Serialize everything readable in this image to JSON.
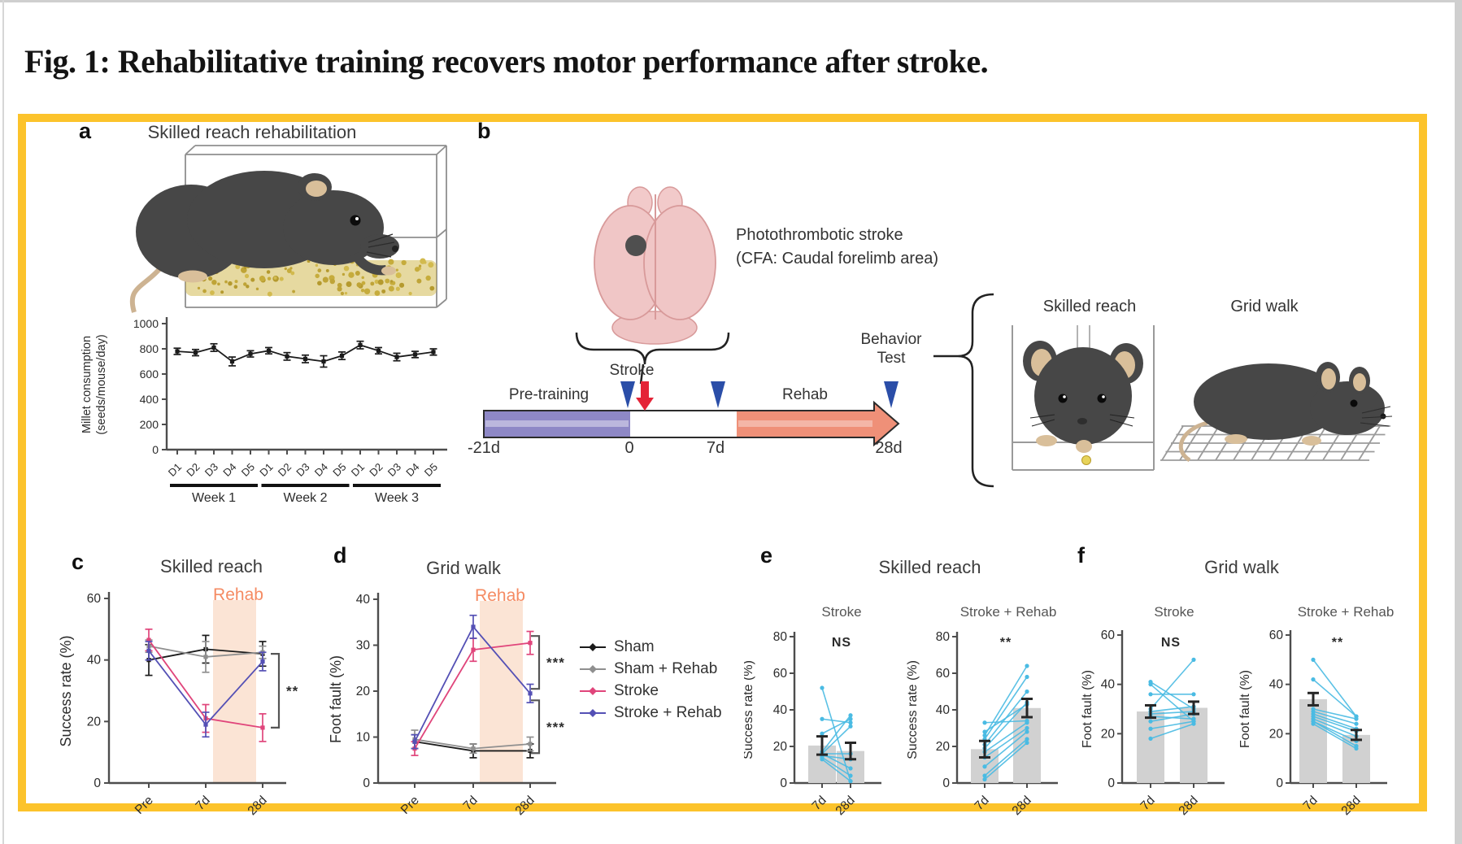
{
  "page": {
    "title": "Fig. 1: Rehabilitative training recovers motor performance after stroke."
  },
  "colors": {
    "figure_border": "#FCC32B",
    "sham": "#1b1b1b",
    "sham_rehab": "#8f8f8f",
    "stroke": "#E0457B",
    "stroke_rehab": "#5450B5",
    "individual_line": "#4ABBE3",
    "bar_fill": "#D1D1D1",
    "rehab_shade": "#FBE4D5",
    "rehab_text": "#F58B63",
    "pretraining_bar": "#8E88C6",
    "rehab_arrow": "#EF9078",
    "timepoint_triangle": "#2B4EA8",
    "stroke_arrow": "#E42437",
    "seeds": "#C6AC3C"
  },
  "panels": {
    "a": {
      "label": "a",
      "title": "Skilled reach rehabilitation"
    },
    "b": {
      "label": "b",
      "caption": [
        "Photothrombotic stroke",
        "(CFA: Caudal forelimb area)"
      ],
      "timeline": {
        "pretraining": "Pre-training",
        "stroke": "Stroke",
        "rehab": "Rehab",
        "behavior": [
          "Behavior",
          "Test"
        ],
        "ticks": [
          "-21d",
          "0",
          "7d",
          "28d"
        ]
      },
      "tests": {
        "skilled_reach": "Skilled reach",
        "grid_walk": "Grid walk"
      }
    },
    "c": {
      "label": "c"
    },
    "d": {
      "label": "d"
    },
    "e": {
      "label": "e"
    },
    "f": {
      "label": "f"
    }
  },
  "legend": {
    "items": [
      {
        "label": "Sham",
        "color": "#1b1b1b"
      },
      {
        "label": "Sham + Rehab",
        "color": "#8f8f8f"
      },
      {
        "label": "Stroke",
        "color": "#E0457B"
      },
      {
        "label": "Stroke + Rehab",
        "color": "#5450B5"
      }
    ]
  },
  "chart_data": [
    {
      "id": "millet",
      "type": "line",
      "ylabel": [
        "Millet consumption",
        "(seeds/mouse/day)"
      ],
      "ylim": [
        0,
        1000
      ],
      "yticks": [
        0,
        200,
        400,
        600,
        800,
        1000
      ],
      "categories": [
        "D1",
        "D2",
        "D3",
        "D4",
        "D5",
        "D1",
        "D2",
        "D3",
        "D4",
        "D5",
        "D1",
        "D2",
        "D3",
        "D4",
        "D5"
      ],
      "groups": [
        {
          "label": "Week 1",
          "from": 0,
          "to": 4
        },
        {
          "label": "Week 2",
          "from": 5,
          "to": 9
        },
        {
          "label": "Week 3",
          "from": 10,
          "to": 14
        }
      ],
      "series": [
        {
          "name": "Millet consumption",
          "color": "#1b1b1b",
          "values": [
            780,
            770,
            810,
            700,
            760,
            785,
            740,
            720,
            700,
            745,
            830,
            785,
            735,
            755,
            775
          ],
          "errors": [
            25,
            25,
            30,
            35,
            25,
            25,
            30,
            30,
            45,
            30,
            30,
            25,
            30,
            25,
            25
          ]
        }
      ]
    },
    {
      "id": "skilled_reach_line",
      "type": "line",
      "title": "Skilled reach",
      "rehab_label": "Rehab",
      "ylabel": "Success rate (%)",
      "ylim": [
        0,
        60
      ],
      "yticks": [
        0,
        20,
        40,
        60
      ],
      "categories": [
        "Pre",
        "7d",
        "28d"
      ],
      "shaded": true,
      "series": [
        {
          "name": "Sham",
          "color": "#1b1b1b",
          "values": [
            40,
            43.5,
            42
          ],
          "errors": [
            5,
            4.5,
            4
          ]
        },
        {
          "name": "Sham + Rehab",
          "color": "#8f8f8f",
          "values": [
            44.5,
            41,
            42.5
          ],
          "errors": [
            2,
            5,
            2
          ]
        },
        {
          "name": "Stroke",
          "color": "#E0457B",
          "values": [
            46.5,
            21,
            18
          ],
          "errors": [
            3.5,
            4.5,
            4.5
          ]
        },
        {
          "name": "Stroke + Rehab",
          "color": "#5450B5",
          "values": [
            43,
            19,
            39.5
          ],
          "errors": [
            3,
            4,
            3
          ]
        }
      ],
      "sig": [
        {
          "label": "**",
          "from": 42,
          "to": 18
        }
      ]
    },
    {
      "id": "grid_walk_line",
      "type": "line",
      "title": "Grid walk",
      "rehab_label": "Rehab",
      "ylabel": "Foot fault (%)",
      "ylim": [
        0,
        40
      ],
      "yticks": [
        0,
        10,
        20,
        30,
        40
      ],
      "categories": [
        "Pre",
        "7d",
        "28d"
      ],
      "shaded": true,
      "series": [
        {
          "name": "Sham",
          "color": "#1b1b1b",
          "values": [
            9,
            7,
            7
          ],
          "errors": [
            1.5,
            1.5,
            1.5
          ]
        },
        {
          "name": "Sham + Rehab",
          "color": "#8f8f8f",
          "values": [
            9.5,
            7.5,
            8.5
          ],
          "errors": [
            2,
            1,
            1.5
          ]
        },
        {
          "name": "Stroke",
          "color": "#E0457B",
          "values": [
            7.5,
            29,
            30.5
          ],
          "errors": [
            1.5,
            2.5,
            2.5
          ]
        },
        {
          "name": "Stroke + Rehab",
          "color": "#5450B5",
          "values": [
            9,
            34,
            19.5
          ],
          "errors": [
            1.5,
            2.5,
            2
          ]
        }
      ],
      "sig": [
        {
          "label": "***",
          "from": 32,
          "to": 20.5
        },
        {
          "label": "***",
          "from": 18,
          "to": 6.5
        }
      ]
    },
    {
      "id": "skilled_reach_paired",
      "type": "paired-bar",
      "panel_title": "Skilled reach",
      "subcharts": [
        {
          "title": "Stroke",
          "sig": "NS",
          "ylabel": "Success rate (%)",
          "ylim": [
            0,
            80
          ],
          "yticks": [
            0,
            20,
            40,
            60,
            80
          ],
          "categories": [
            "7d",
            "28d"
          ],
          "bar_values": [
            20.5,
            17.5
          ],
          "bar_errors": [
            5,
            4.5
          ],
          "pairs": [
            [
              52,
              1
            ],
            [
              35,
              33
            ],
            [
              27,
              35
            ],
            [
              17,
              37
            ],
            [
              16,
              31
            ],
            [
              16,
              16
            ],
            [
              15,
              13
            ],
            [
              16,
              8
            ],
            [
              14,
              4
            ],
            [
              13,
              1
            ]
          ]
        },
        {
          "title": "Stroke + Rehab",
          "sig": "**",
          "ylabel": "Success rate (%)",
          "ylim": [
            0,
            80
          ],
          "yticks": [
            0,
            20,
            40,
            60,
            80
          ],
          "categories": [
            "7d",
            "28d"
          ],
          "bar_values": [
            18.5,
            41
          ],
          "bar_errors": [
            4.5,
            5
          ],
          "pairs": [
            [
              33,
              34
            ],
            [
              28,
              43
            ],
            [
              26,
              64
            ],
            [
              24,
              58
            ],
            [
              21,
              50
            ],
            [
              19,
              44
            ],
            [
              17,
              33
            ],
            [
              14,
              30
            ],
            [
              9,
              28
            ],
            [
              4,
              24
            ],
            [
              2,
              22
            ]
          ]
        }
      ]
    },
    {
      "id": "grid_walk_paired",
      "type": "paired-bar",
      "panel_title": "Grid walk",
      "subcharts": [
        {
          "title": "Stroke",
          "sig": "NS",
          "ylabel": "Foot fault (%)",
          "ylim": [
            0,
            60
          ],
          "yticks": [
            0,
            20,
            40,
            60
          ],
          "categories": [
            "7d",
            "28d"
          ],
          "bar_values": [
            29,
            30.5
          ],
          "bar_errors": [
            2.5,
            2.5
          ],
          "pairs": [
            [
              41,
              30
            ],
            [
              40,
              25
            ],
            [
              36,
              36
            ],
            [
              30,
              50
            ],
            [
              29,
              31
            ],
            [
              28,
              29
            ],
            [
              27,
              26
            ],
            [
              25,
              28
            ],
            [
              22,
              25
            ],
            [
              18,
              24
            ]
          ]
        },
        {
          "title": "Stroke + Rehab",
          "sig": "**",
          "ylabel": "Foot fault (%)",
          "ylim": [
            0,
            60
          ],
          "yticks": [
            0,
            20,
            40,
            60
          ],
          "categories": [
            "7d",
            "28d"
          ],
          "bar_values": [
            34,
            19.5
          ],
          "bar_errors": [
            2.5,
            2
          ],
          "pairs": [
            [
              50,
              27
            ],
            [
              42,
              27
            ],
            [
              30,
              26
            ],
            [
              29,
              24
            ],
            [
              28,
              22
            ],
            [
              27,
              21
            ],
            [
              26,
              19
            ],
            [
              25,
              17
            ],
            [
              25,
              15
            ],
            [
              24,
              14
            ]
          ]
        }
      ]
    }
  ]
}
